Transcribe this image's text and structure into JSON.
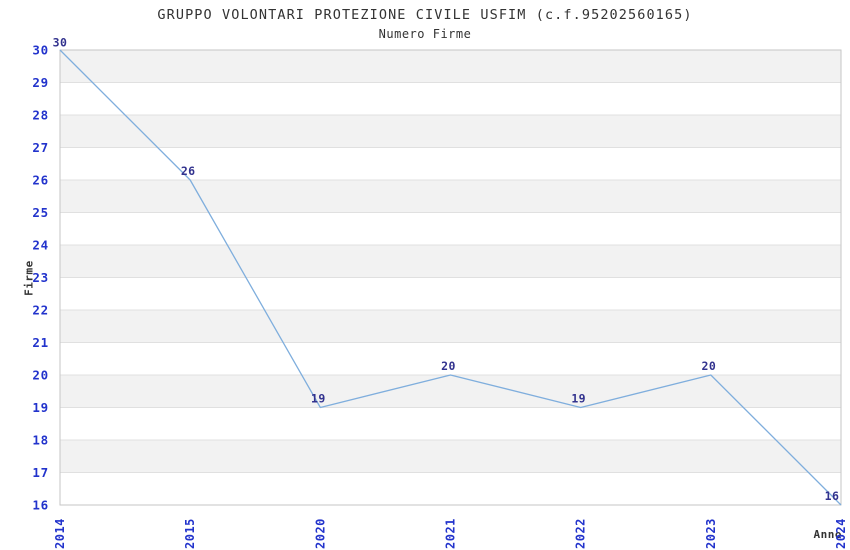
{
  "header": {
    "title": "GRUPPO VOLONTARI PROTEZIONE CIVILE USFIM (c.f.95202560165)",
    "subtitle": "Numero Firme"
  },
  "chart_data": {
    "type": "line",
    "title": "GRUPPO VOLONTARI PROTEZIONE CIVILE USFIM (c.f.95202560165)",
    "subtitle": "Numero Firme",
    "xlabel": "Anno",
    "ylabel": "Firme",
    "categories": [
      "2014",
      "2015",
      "2020",
      "2021",
      "2022",
      "2023",
      "2024"
    ],
    "values": [
      30,
      26,
      19,
      20,
      19,
      20,
      16
    ],
    "data_labels": [
      "30",
      "26",
      "19",
      "20",
      "19",
      "20",
      "16"
    ],
    "ylim": [
      16,
      30
    ],
    "ytick_step": 1,
    "yticks": [
      16,
      17,
      18,
      19,
      20,
      21,
      22,
      23,
      24,
      25,
      26,
      27,
      28,
      29,
      30
    ],
    "grid": true,
    "band_fill": "alternating-horizontal",
    "legend": "none",
    "markers": "none",
    "colors": {
      "line": "#7faedd",
      "tick_label": "#2233cc",
      "data_label": "#32328e",
      "band_gray": "#f2f2f2",
      "band_white": "#ffffff",
      "gridline": "#e0e0e0",
      "plot_border": "#c6c6c6",
      "text": "#333333",
      "background": "#ffffff"
    }
  }
}
